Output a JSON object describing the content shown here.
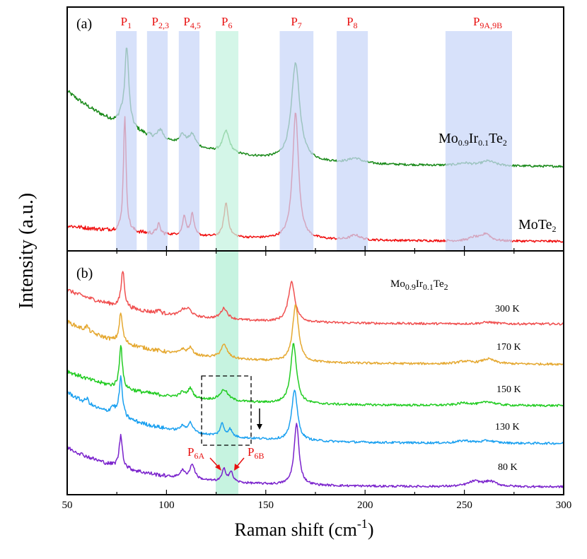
{
  "chart_data": [
    {
      "panel_label": "(a)",
      "type": "line",
      "xlim": [
        50,
        300
      ],
      "x_ticks": [
        50,
        100,
        150,
        200,
        250,
        300
      ],
      "y_ticks": [],
      "intensity_scale": "arbitrary",
      "ylim": [
        0,
        100
      ],
      "bands": [
        {
          "label": {
            "base": "P",
            "sub": "1"
          },
          "range": [
            74.6,
            85.0
          ],
          "color": "#c9d7f8"
        },
        {
          "label": {
            "base": "P",
            "sub": "2,3"
          },
          "range": [
            90.2,
            100.6
          ],
          "color": "#c9d7f8"
        },
        {
          "label": {
            "base": "P",
            "sub": "4,5"
          },
          "range": [
            106.2,
            116.6
          ],
          "color": "#c9d7f8"
        },
        {
          "label": {
            "base": "P",
            "sub": "6"
          },
          "range": [
            124.8,
            136.2
          ],
          "color": "#c6f3e0"
        },
        {
          "label": {
            "base": "P",
            "sub": "7"
          },
          "range": [
            157.0,
            174.0
          ],
          "color": "#c9d7f8"
        },
        {
          "label": {
            "base": "P",
            "sub": "8"
          },
          "range": [
            185.7,
            201.4
          ],
          "color": "#c9d7f8"
        },
        {
          "label": {
            "base": "P",
            "sub": "9A,9B"
          },
          "range": [
            240.5,
            274.0
          ],
          "color": "#c9d7f8"
        }
      ],
      "series": [
        {
          "name": {
            "parts": [
              [
                "Mo",
                ""
              ],
              [
                "0.9",
                "sub"
              ],
              [
                "Ir",
                ""
              ],
              [
                "0.1",
                "sub"
              ],
              [
                "Te",
                ""
              ],
              [
                "2",
                "sub"
              ]
            ]
          },
          "color": "#1a8a1a",
          "baseline": {
            "offset": 34.5,
            "amp": 31,
            "decay": 46
          },
          "peaks": [
            [
              77,
              3,
              1.2
            ],
            [
              80,
              33,
              1.2
            ],
            [
              97,
              4,
              1.5
            ],
            [
              108,
              4,
              2
            ],
            [
              113,
              5,
              2
            ],
            [
              130,
              9,
              2
            ],
            [
              165,
              40,
              2.5
            ],
            [
              195,
              2,
              4
            ],
            [
              250,
              1,
              4
            ],
            [
              262,
              2,
              4
            ]
          ]
        },
        {
          "name": {
            "parts": [
              [
                "MoTe",
                ""
              ],
              [
                "2",
                "sub"
              ]
            ]
          },
          "color": "#f01010",
          "baseline": {
            "offset": 3.8,
            "amp": 6.5,
            "decay": 60
          },
          "peaks": [
            [
              79,
              48,
              0.8
            ],
            [
              96,
              4,
              1
            ],
            [
              109,
              8,
              1
            ],
            [
              113,
              9,
              1
            ],
            [
              130,
              14,
              1.3
            ],
            [
              165,
              52,
              1.8
            ],
            [
              195,
              2,
              3
            ],
            [
              255,
              1.5,
              3
            ],
            [
              261,
              3,
              2.5
            ]
          ]
        }
      ]
    },
    {
      "panel_label": "(b)",
      "type": "line",
      "title": {
        "parts": [
          [
            "Mo",
            ""
          ],
          [
            "0.9",
            "sub"
          ],
          [
            "Ir",
            ""
          ],
          [
            "0.1",
            "sub"
          ],
          [
            "Te",
            ""
          ],
          [
            "2",
            "sub"
          ]
        ]
      },
      "xlim": [
        50,
        300
      ],
      "x_ticks": [
        50,
        100,
        150,
        200,
        250,
        300
      ],
      "y_ticks": [],
      "intensity_scale": "arbitrary",
      "ylim": [
        0,
        100
      ],
      "xlabel": {
        "text": "Raman shift (cm",
        "sup": "-1",
        "close": ")"
      },
      "ylabel": "Intensity (a.u.)",
      "bands": [
        {
          "label": {
            "base": "P",
            "sub": "6"
          },
          "range": [
            124.8,
            136.2
          ],
          "color": "#c6f3e0"
        }
      ],
      "series": [
        {
          "name": "300 K",
          "color": "#f05050",
          "baseline": {
            "offset": 70,
            "amp": 14,
            "decay": 40
          },
          "peaks": [
            [
              78,
              15,
              1
            ],
            [
              96,
              1.5,
              1
            ],
            [
              108,
              2,
              1.5
            ],
            [
              111,
              3,
              2
            ],
            [
              129,
              4.5,
              2
            ],
            [
              163,
              16.5,
              2
            ],
            [
              262,
              0.7,
              4
            ]
          ]
        },
        {
          "name": "170 K",
          "color": "#e5a830",
          "baseline": {
            "offset": 53.5,
            "amp": 17.5,
            "decay": 40
          },
          "peaks": [
            [
              60,
              2,
              1
            ],
            [
              77,
              12,
              1
            ],
            [
              108,
              2,
              1.5
            ],
            [
              112,
              3,
              1.5
            ],
            [
              129,
              5.5,
              2
            ],
            [
              165,
              23.5,
              1.8
            ],
            [
              250,
              1,
              4
            ],
            [
              262,
              2,
              4
            ]
          ]
        },
        {
          "name": "150 K",
          "color": "#22cc22",
          "baseline": {
            "offset": 36.5,
            "amp": 14.2,
            "decay": 40
          },
          "peaks": [
            [
              77,
              18,
              0.9
            ],
            [
              108,
              2,
              1.5
            ],
            [
              112,
              4,
              1.5
            ],
            [
              129,
              4.5,
              2.5
            ],
            [
              164,
              24.6,
              1.8
            ],
            [
              250,
              1,
              4
            ],
            [
              262,
              1.5,
              4
            ]
          ]
        },
        {
          "name": "130 K",
          "color": "#1aa0f0",
          "baseline": {
            "offset": 21,
            "amp": 21,
            "decay": 40
          },
          "peaks": [
            [
              60,
              2,
              1
            ],
            [
              73,
              3,
              1.5
            ],
            [
              77,
              16,
              1
            ],
            [
              108,
              2,
              1.5
            ],
            [
              112,
              4,
              1.5
            ],
            [
              128,
              5,
              1.2
            ],
            [
              132,
              3,
              1.2
            ],
            [
              164.5,
              21,
              1.7
            ],
            [
              250,
              1,
              4
            ],
            [
              262,
              1,
              4
            ]
          ]
        },
        {
          "name": "80 K",
          "color": "#7a22cc",
          "baseline": {
            "offset": 3.2,
            "amp": 16.2,
            "decay": 38
          },
          "peaks": [
            [
              77,
              13,
              1
            ],
            [
              108,
              3,
              1.5
            ],
            [
              113,
              6,
              1.5
            ],
            [
              129,
              5,
              1.2
            ],
            [
              132.5,
              4,
              1.2
            ],
            [
              165.5,
              25,
              1.5
            ],
            [
              255,
              2,
              4
            ],
            [
              263,
              2,
              4
            ]
          ]
        }
      ],
      "annotations": [
        {
          "label": {
            "base": "P",
            "sub": "6A"
          },
          "points_to": 129,
          "color": "#e81010"
        },
        {
          "label": {
            "base": "P",
            "sub": "6B"
          },
          "points_to": 132.5,
          "color": "#e81010"
        }
      ],
      "highlight_box": {
        "x_range": [
          117.7,
          142.6
        ],
        "y_range": [
          20.3,
          48.7
        ],
        "style": "dashed",
        "arrow": "down"
      }
    }
  ]
}
